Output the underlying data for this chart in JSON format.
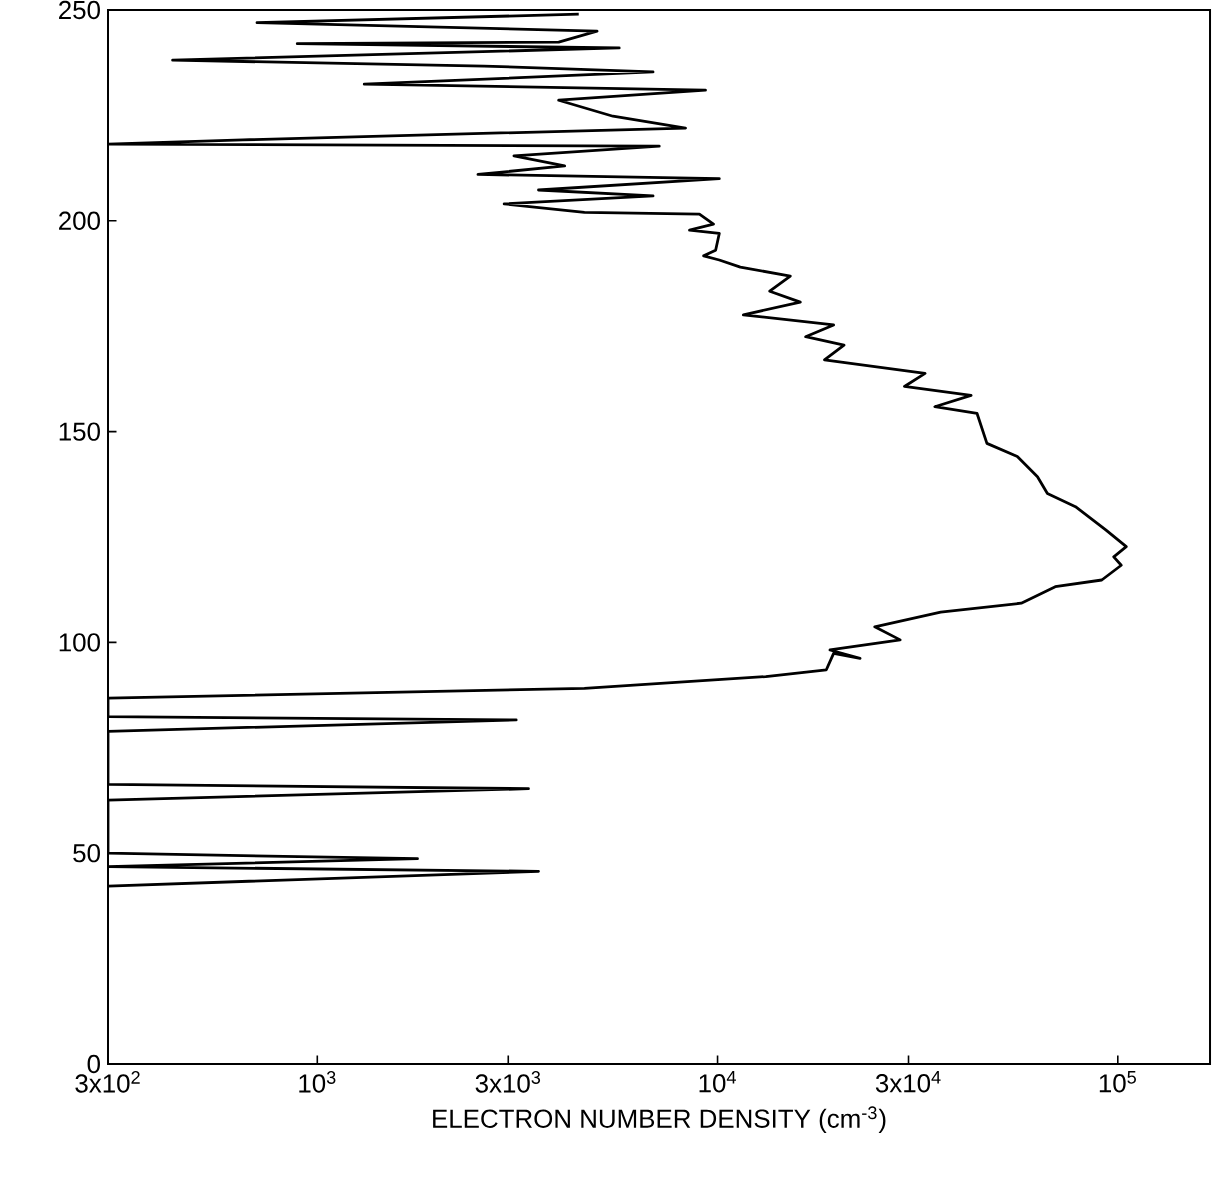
{
  "chart_data": {
    "type": "line",
    "xlabel": "ELECTRON NUMBER DENSITY (cm$^{-3}$)",
    "log": "x",
    "color": "#000000",
    "marker": "none",
    "line_style": "solid",
    "xlim": [
      300,
      170000
    ],
    "ylim": [
      0,
      250
    ],
    "xticks": [
      {
        "value": 300,
        "label": "3x10$^{2}$"
      },
      {
        "value": 1000,
        "label": "10$^{3}$"
      },
      {
        "value": 3000,
        "label": "3x10$^{3}$"
      },
      {
        "value": 10000,
        "label": "10$^{4}$"
      },
      {
        "value": 30000,
        "label": "3x10$^{4}$"
      },
      {
        "value": 100000,
        "label": "10$^{5}$"
      }
    ],
    "yticks": [
      0,
      50,
      100,
      150,
      200,
      250
    ],
    "x": [
      300,
      3570,
      300,
      1780,
      300,
      300,
      3370,
      300,
      300,
      3140,
      300,
      300,
      4650,
      8040,
      13200,
      18700,
      19500,
      22700,
      19100,
      28600,
      24700,
      36100,
      57400,
      69800,
      91200,
      102000,
      97700,
      105000,
      93300,
      78400,
      66700,
      63000,
      56100,
      47100,
      44500,
      34900,
      43000,
      29300,
      33000,
      18500,
      20700,
      16600,
      19500,
      11600,
      16100,
      13500,
      15200,
      11400,
      10100,
      9230,
      9890,
      10100,
      8510,
      9770,
      9010,
      4650,
      2930,
      6900,
      3570,
      10100,
      2520,
      4150,
      3100,
      7150,
      300,
      652,
      8320,
      5480,
      4010,
      9330,
      1310,
      6900,
      2610,
      435,
      5680,
      891,
      4010,
      5000,
      707,
      4500
    ],
    "values": [
      42.2,
      45.7,
      46.8,
      48.7,
      50.0,
      62.6,
      65.3,
      66.3,
      78.9,
      81.6,
      82.4,
      86.8,
      89.1,
      90.6,
      91.9,
      93.5,
      97.4,
      96.2,
      98.2,
      100.6,
      103.7,
      107.2,
      109.3,
      113.2,
      114.8,
      118.3,
      120.3,
      122.7,
      126.7,
      132.2,
      135.3,
      139.3,
      144.1,
      147.2,
      154.3,
      155.9,
      158.6,
      160.7,
      163.8,
      167.0,
      170.5,
      172.5,
      175.3,
      177.7,
      180.7,
      183.3,
      186.9,
      189.0,
      190.7,
      191.7,
      193.0,
      197.0,
      197.8,
      199.2,
      201.6,
      202.0,
      204.0,
      205.9,
      207.3,
      210.0,
      211.0,
      213.0,
      215.4,
      217.7,
      218.2,
      219.2,
      222.0,
      224.8,
      228.6,
      231.0,
      232.4,
      235.3,
      236.7,
      238.1,
      241.0,
      242.0,
      242.4,
      245.0,
      247.0,
      249.0
    ]
  }
}
